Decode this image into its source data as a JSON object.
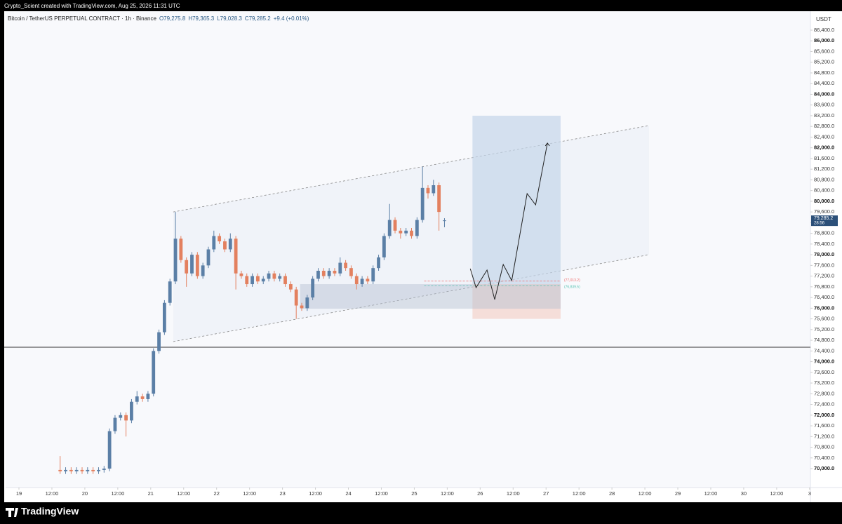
{
  "header": "Crypto_Scient created with TradingView.com, Aug 25, 2026 11:31 UTC",
  "footer": {
    "logo": "TradingView"
  },
  "chart_data": {
    "type": "candlestick",
    "legend": {
      "symbol": "Bitcoin / TetherUS PERPETUAL CONTRACT · 1h · Binance",
      "open": "O79,275.8",
      "high": "H79,365.3",
      "low": "L79,028.3",
      "close": "C79,285.2",
      "change": "+9.4 (+0.01%)"
    },
    "currency": "USDT",
    "up_color": "#5b7fa6",
    "down_color": "#e3805f",
    "candles": {
      "x": [
        15,
        17,
        19,
        21,
        23,
        25,
        27,
        29,
        31,
        33,
        35,
        37,
        39,
        41,
        43,
        45,
        47,
        49,
        51,
        53,
        55,
        57,
        59,
        61,
        63,
        65,
        67,
        69,
        71,
        73,
        75,
        77,
        79,
        81,
        83,
        85,
        87,
        89,
        91,
        93,
        95,
        97,
        99,
        101,
        103,
        105,
        107,
        109,
        111,
        113,
        115,
        117,
        119,
        121,
        123,
        125,
        127,
        129,
        131,
        133,
        135,
        137,
        139,
        141,
        143,
        145,
        147,
        149,
        151,
        153,
        155
      ],
      "open": [
        69950,
        69900,
        69950,
        69900,
        69950,
        69900,
        69950,
        69900,
        69950,
        70000,
        71400,
        71900,
        72000,
        71800,
        72500,
        72700,
        72600,
        72800,
        74400,
        75100,
        76200,
        77000,
        78600,
        77800,
        77300,
        78000,
        77200,
        77600,
        78200,
        78700,
        78500,
        78200,
        78600,
        77300,
        77200,
        76900,
        77200,
        77000,
        77100,
        77300,
        77100,
        77200,
        76900,
        76700,
        76100,
        76000,
        76400,
        77100,
        77400,
        77200,
        77400,
        77300,
        77700,
        77500,
        77200,
        76900,
        77100,
        77000,
        77500,
        77900,
        78700,
        79300,
        78900,
        78800,
        78900,
        78700,
        79300,
        80500,
        80300,
        80600,
        79275.8
      ],
      "high": [
        70470,
        70050,
        70050,
        70050,
        70050,
        70050,
        70050,
        70050,
        70100,
        71500,
        72000,
        72100,
        72100,
        72600,
        72900,
        72800,
        72900,
        74500,
        75200,
        76300,
        77100,
        79600,
        78700,
        77900,
        78100,
        78100,
        77700,
        78300,
        78900,
        78800,
        78600,
        78800,
        78700,
        77400,
        77300,
        77300,
        77300,
        77200,
        77400,
        77400,
        77300,
        77300,
        77000,
        76800,
        76200,
        76500,
        77200,
        77500,
        77500,
        77500,
        77500,
        77900,
        77800,
        77600,
        77300,
        77200,
        77200,
        77600,
        78000,
        78800,
        79900,
        79400,
        79000,
        79000,
        79000,
        79400,
        81300,
        80600,
        80800,
        80700,
        79365.3
      ],
      "low": [
        69800,
        69800,
        69800,
        69800,
        69800,
        69800,
        69800,
        69800,
        69850,
        69900,
        71300,
        71800,
        71200,
        71700,
        72400,
        72500,
        72500,
        72700,
        74300,
        75000,
        76100,
        76900,
        77700,
        76800,
        77200,
        77100,
        77100,
        77500,
        78100,
        78400,
        78100,
        78100,
        76700,
        77100,
        76800,
        76800,
        76900,
        76900,
        77000,
        77000,
        77000,
        76800,
        76600,
        75600,
        75900,
        75900,
        76300,
        77000,
        77100,
        77100,
        77200,
        77200,
        77400,
        77100,
        76700,
        76800,
        76900,
        76900,
        77400,
        77800,
        78600,
        78800,
        78600,
        78700,
        78600,
        78600,
        79200,
        80100,
        80200,
        78900,
        79028.3
      ],
      "close": [
        69900,
        69950,
        69900,
        69950,
        69900,
        69950,
        69900,
        69950,
        70000,
        71400,
        71900,
        72000,
        71800,
        72500,
        72700,
        72600,
        72800,
        74400,
        75100,
        76200,
        77000,
        78600,
        77800,
        77300,
        78000,
        77200,
        77600,
        78200,
        78700,
        78500,
        78200,
        78600,
        77300,
        77200,
        76900,
        77200,
        77000,
        77100,
        77300,
        77100,
        77200,
        76900,
        76700,
        76100,
        76000,
        76400,
        77100,
        77400,
        77200,
        77400,
        77300,
        77700,
        77500,
        77200,
        76900,
        77100,
        77000,
        77500,
        77900,
        78700,
        79300,
        78900,
        78800,
        78900,
        78700,
        79300,
        80500,
        80300,
        80600,
        79600,
        79285.2
      ]
    },
    "xlim": [
      -4.86,
      288.3
    ],
    "xticks": [
      {
        "value": 0,
        "label": "19"
      },
      {
        "value": 12,
        "label": "12:00"
      },
      {
        "value": 24,
        "label": "20"
      },
      {
        "value": 36,
        "label": "12:00"
      },
      {
        "value": 48,
        "label": "21"
      },
      {
        "value": 60,
        "label": "12:00"
      },
      {
        "value": 72,
        "label": "22"
      },
      {
        "value": 84,
        "label": "12:00"
      },
      {
        "value": 96,
        "label": "23"
      },
      {
        "value": 108,
        "label": "12:00"
      },
      {
        "value": 120,
        "label": "24"
      },
      {
        "value": 132,
        "label": "12:00"
      },
      {
        "value": 144,
        "label": "25"
      },
      {
        "value": 156,
        "label": "12:00"
      },
      {
        "value": 168,
        "label": "26"
      },
      {
        "value": 180,
        "label": "12:00"
      },
      {
        "value": 192,
        "label": "27"
      },
      {
        "value": 204,
        "label": "12:00"
      },
      {
        "value": 216,
        "label": "28"
      },
      {
        "value": 228,
        "label": "12:00"
      },
      {
        "value": 240,
        "label": "29"
      },
      {
        "value": 252,
        "label": "12:00"
      },
      {
        "value": 264,
        "label": "30"
      },
      {
        "value": 276,
        "label": "12:00"
      },
      {
        "value": 288,
        "label": "3"
      }
    ],
    "ylim": [
      69292,
      87108
    ],
    "yticks": [
      {
        "value": 70000,
        "label": "70,000.0"
      },
      {
        "value": 70400,
        "label": "70,400.0"
      },
      {
        "value": 70800,
        "label": "70,800.0"
      },
      {
        "value": 71200,
        "label": "71,200.0"
      },
      {
        "value": 71600,
        "label": "71,600.0"
      },
      {
        "value": 72000,
        "label": "72,000.0"
      },
      {
        "value": 72400,
        "label": "72,400.0"
      },
      {
        "value": 72800,
        "label": "72,800.0"
      },
      {
        "value": 73200,
        "label": "73,200.0"
      },
      {
        "value": 73600,
        "label": "73,600.0"
      },
      {
        "value": 74000,
        "label": "74,000.0"
      },
      {
        "value": 74400,
        "label": "74,400.0"
      },
      {
        "value": 74800,
        "label": "74,800.0"
      },
      {
        "value": 75200,
        "label": "75,200.0"
      },
      {
        "value": 75600,
        "label": "75,600.0"
      },
      {
        "value": 76000,
        "label": "76,000.0"
      },
      {
        "value": 76400,
        "label": "76,400.0"
      },
      {
        "value": 76800,
        "label": "76,800.0"
      },
      {
        "value": 77200,
        "label": "77,200.0"
      },
      {
        "value": 77600,
        "label": "77,600.0"
      },
      {
        "value": 78000,
        "label": "78,000.0"
      },
      {
        "value": 78400,
        "label": "78,400.0"
      },
      {
        "value": 78800,
        "label": "78,800.0"
      },
      {
        "value": 79200,
        "label": "79,200.0"
      },
      {
        "value": 79600,
        "label": "79,600.0"
      },
      {
        "value": 80000,
        "label": "80,000.0"
      },
      {
        "value": 80400,
        "label": "80,400.0"
      },
      {
        "value": 80800,
        "label": "80,800.0"
      },
      {
        "value": 81200,
        "label": "81,200.0"
      },
      {
        "value": 81600,
        "label": "81,600.0"
      },
      {
        "value": 82000,
        "label": "82,000.0"
      },
      {
        "value": 82400,
        "label": "82,400.0"
      },
      {
        "value": 82800,
        "label": "82,800.0"
      },
      {
        "value": 83200,
        "label": "83,200.0"
      },
      {
        "value": 83600,
        "label": "83,600.0"
      },
      {
        "value": 84000,
        "label": "84,000.0"
      },
      {
        "value": 84400,
        "label": "84,400.0"
      },
      {
        "value": 84800,
        "label": "84,800.0"
      },
      {
        "value": 85200,
        "label": "85,200.0"
      },
      {
        "value": 85600,
        "label": "85,600.0"
      },
      {
        "value": 86000,
        "label": "86,000.0"
      },
      {
        "value": 86400,
        "label": "86,400.0"
      }
    ],
    "current_price": {
      "value": 79285.2,
      "label": "79,285.2",
      "countdown": "28:56"
    },
    "horizontal_line": 74540,
    "channel": {
      "x": [
        56.2,
        229.5
      ],
      "upper": [
        79600,
        82830
      ],
      "lower": [
        74750,
        78000
      ]
    },
    "zone": {
      "x": [
        102.4,
        197.3
      ],
      "top": 76900,
      "bottom": 75980
    },
    "position": {
      "x": [
        165.2,
        197.3
      ],
      "entry": 76900,
      "target": 83200,
      "stop": 75600
    },
    "levels": [
      {
        "value": 77013.2,
        "label": "(77,013.2)",
        "color": "#f06d6d"
      },
      {
        "value": 76839.5,
        "label": "(76,839.5)",
        "color": "#5cc4b4"
      }
    ],
    "levels_x": [
      147.6,
      197.3
    ],
    "projection": {
      "x": [
        164.4,
        166.5,
        170.5,
        173.3,
        176.4,
        179.5,
        185.1,
        188.2,
        192.5
      ],
      "y": [
        77478,
        76770,
        77426,
        76324,
        77636,
        77032,
        80286,
        79866,
        82175
      ]
    }
  }
}
